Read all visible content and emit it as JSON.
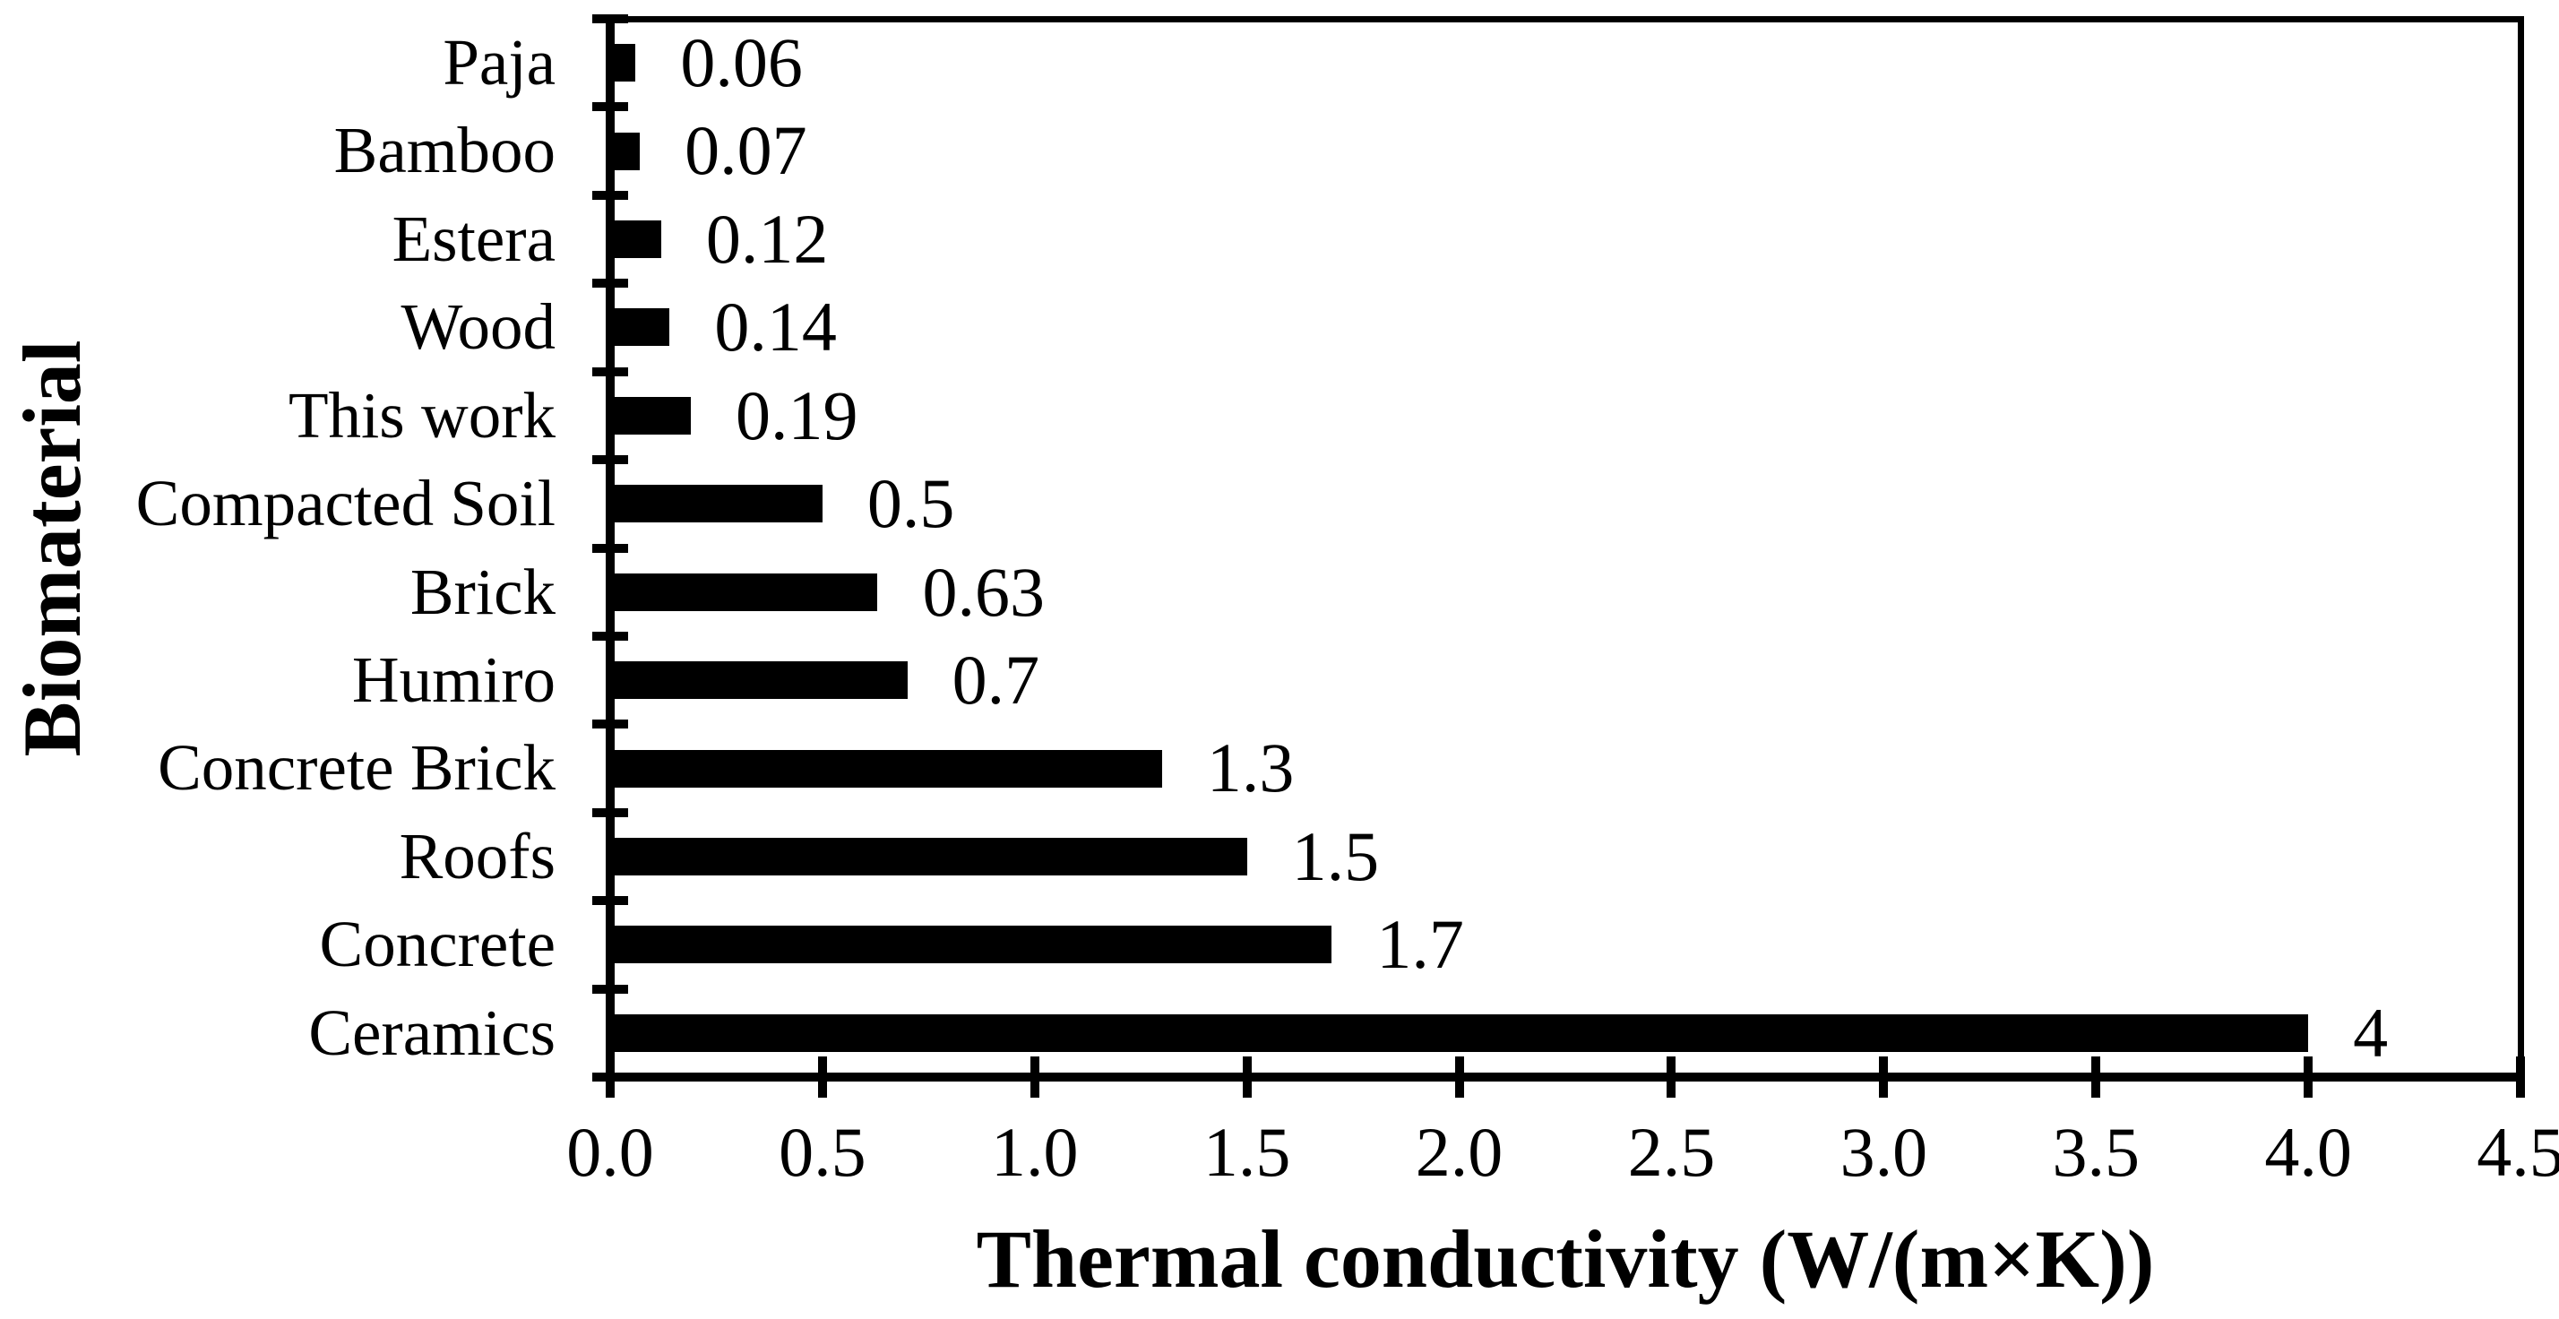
{
  "chart_data": {
    "type": "bar",
    "orientation": "horizontal",
    "title": "",
    "xlabel": "Thermal conductivity (W/(m×K))",
    "ylabel": "Biomaterial",
    "categories": [
      "Paja",
      "Bamboo",
      "Estera",
      "Wood",
      "This work",
      "Compacted Soil",
      "Brick",
      "Humiro",
      "Concrete Brick",
      "Roofs",
      "Concrete",
      "Ceramics"
    ],
    "values": [
      0.06,
      0.07,
      0.12,
      0.14,
      0.19,
      0.5,
      0.63,
      0.7,
      1.3,
      1.5,
      1.7,
      4
    ],
    "value_labels": [
      "0.06",
      "0.07",
      "0.12",
      "0.14",
      "0.19",
      "0.5",
      "0.63",
      "0.7",
      "1.3",
      "1.5",
      "1.7",
      "4"
    ],
    "xlim": [
      0,
      4.5
    ],
    "x_ticks": [
      0.0,
      0.5,
      1.0,
      1.5,
      2.0,
      2.5,
      3.0,
      3.5,
      4.0,
      4.5
    ],
    "x_tick_labels": [
      "0.0",
      "0.5",
      "1.0",
      "1.5",
      "2.0",
      "2.5",
      "3.0",
      "3.5",
      "4.0",
      "4.5"
    ],
    "bar_color": "#000000",
    "background_color": "#ffffff",
    "grid": false,
    "legend_position": "none"
  }
}
